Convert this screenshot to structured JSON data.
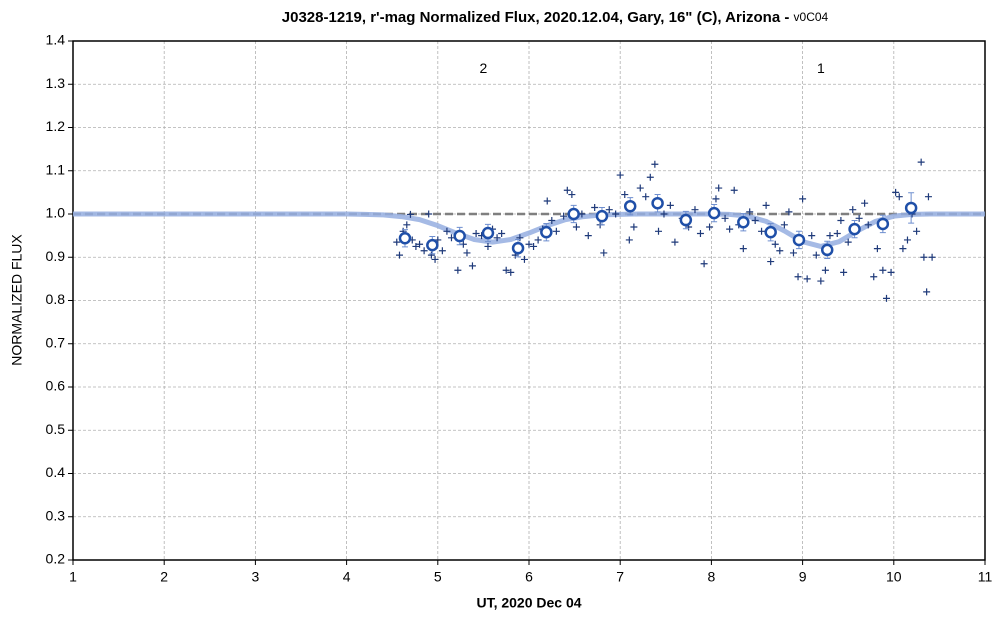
{
  "chart_data": {
    "type": "scatter",
    "title": "J0328-1219, r'-mag Normalized Flux, 2020.12.04, Gary, 16\" (C), Arizona - ",
    "title_suffix": "v0C04",
    "xlabel": "UT, 2020 Dec 04",
    "ylabel": "NORMALIZED FLUX",
    "xlim": [
      1,
      11
    ],
    "ylim": [
      0.2,
      1.4
    ],
    "xticks": [
      1,
      2,
      3,
      4,
      5,
      6,
      7,
      8,
      9,
      10,
      11
    ],
    "yticks": [
      0.2,
      0.3,
      0.4,
      0.5,
      0.6,
      0.7,
      0.8,
      0.9,
      {
        "value": 1,
        "label": "1.0"
      },
      1.1,
      1.2,
      1.3,
      1.4
    ],
    "grid": true,
    "annotations": [
      {
        "text": "2",
        "x": 5.5,
        "y": 1.335
      },
      {
        "text": "1",
        "x": 9.2,
        "y": 1.335
      }
    ],
    "series": [
      {
        "kind": "line",
        "line": "dashed",
        "color": "#7f7f7f",
        "x": [
          1,
          11
        ],
        "values": [
          1,
          1
        ]
      },
      {
        "kind": "line",
        "line": "solid",
        "color": "#95aee0",
        "x": [
          1,
          4.0,
          4.2,
          4.4,
          4.6,
          4.8,
          5.0,
          5.2,
          5.4,
          5.6,
          5.8,
          6.0,
          6.2,
          6.4,
          6.6,
          6.8,
          7.0,
          7.2,
          8.0,
          8.2,
          8.4,
          8.6,
          8.8,
          9.0,
          9.2,
          9.4,
          9.6,
          9.8,
          10.0,
          10.2,
          10.4,
          11
        ],
        "values": [
          1,
          1,
          0.999,
          0.998,
          0.994,
          0.987,
          0.973,
          0.956,
          0.941,
          0.935,
          0.941,
          0.956,
          0.973,
          0.987,
          0.994,
          0.998,
          0.999,
          1,
          1,
          0.999,
          0.995,
          0.983,
          0.961,
          0.936,
          0.925,
          0.936,
          0.961,
          0.983,
          0.995,
          0.999,
          1,
          1
        ]
      },
      {
        "kind": "points",
        "marker": "plus",
        "color": "#1f3a7a",
        "x": [
          4.55,
          4.58,
          4.62,
          4.66,
          4.7,
          4.72,
          4.76,
          4.8,
          4.85,
          4.9,
          4.93,
          4.97,
          5.0,
          5.05,
          5.1,
          5.15,
          5.22,
          5.28,
          5.32,
          5.38,
          5.42,
          5.48,
          5.55,
          5.6,
          5.65,
          5.7,
          5.75,
          5.8,
          5.85,
          5.9,
          5.95,
          6.0,
          6.05,
          6.1,
          6.15,
          6.2,
          6.25,
          6.3,
          6.38,
          6.42,
          6.47,
          6.52,
          6.58,
          6.65,
          6.72,
          6.78,
          6.82,
          6.88,
          6.95,
          7.0,
          7.05,
          7.1,
          7.15,
          7.22,
          7.28,
          7.33,
          7.38,
          7.42,
          7.48,
          7.55,
          7.6,
          7.68,
          7.75,
          7.82,
          7.88,
          7.92,
          7.98,
          8.05,
          8.08,
          8.15,
          8.2,
          8.25,
          8.3,
          8.35,
          8.42,
          8.48,
          8.55,
          8.6,
          8.65,
          8.7,
          8.75,
          8.8,
          8.85,
          8.9,
          8.95,
          9.0,
          9.05,
          9.1,
          9.15,
          9.2,
          9.25,
          9.3,
          9.38,
          9.42,
          9.45,
          9.5,
          9.55,
          9.62,
          9.68,
          9.72,
          9.78,
          9.82,
          9.88,
          9.92,
          9.97,
          10.02,
          10.06,
          10.1,
          10.15,
          10.2,
          10.25,
          10.3,
          10.33,
          10.36,
          10.38,
          10.42
        ],
        "values": [
          0.935,
          0.905,
          0.96,
          0.975,
          0.999,
          0.94,
          0.925,
          0.93,
          0.915,
          1.0,
          0.905,
          0.895,
          0.94,
          0.915,
          0.96,
          0.945,
          0.87,
          0.93,
          0.91,
          0.88,
          0.955,
          0.95,
          0.925,
          0.965,
          0.945,
          0.955,
          0.87,
          0.865,
          0.905,
          0.945,
          0.895,
          0.93,
          0.925,
          0.94,
          0.965,
          1.03,
          0.985,
          0.96,
          0.995,
          1.055,
          1.045,
          0.97,
          1.0,
          0.95,
          1.015,
          0.975,
          0.91,
          1.01,
          1.0,
          1.09,
          1.045,
          0.94,
          0.97,
          1.06,
          1.04,
          1.085,
          1.115,
          0.96,
          1.0,
          1.02,
          0.935,
          0.99,
          0.97,
          1.01,
          0.955,
          0.885,
          0.97,
          1.035,
          1.06,
          0.99,
          0.965,
          1.055,
          0.975,
          0.92,
          1.005,
          0.985,
          0.96,
          1.02,
          0.89,
          0.93,
          0.915,
          0.975,
          1.005,
          0.91,
          0.855,
          1.035,
          0.85,
          0.95,
          0.905,
          0.845,
          0.87,
          0.95,
          0.955,
          0.985,
          0.865,
          0.935,
          1.01,
          0.99,
          1.025,
          0.975,
          0.855,
          0.92,
          0.87,
          0.805,
          0.865,
          1.05,
          1.04,
          0.92,
          0.94,
          1.0,
          0.96,
          1.12,
          0.9,
          0.82,
          1.04,
          0.9
        ]
      },
      {
        "kind": "points",
        "marker": "circle",
        "color": "#1f4fa8",
        "x": [
          4.64,
          4.94,
          5.24,
          5.55,
          5.88,
          6.19,
          6.49,
          6.8,
          7.11,
          7.41,
          7.72,
          8.03,
          8.35,
          8.65,
          8.96,
          9.27,
          9.57,
          9.88,
          10.19
        ],
        "values": [
          0.944,
          0.928,
          0.949,
          0.956,
          0.921,
          0.958,
          1.0,
          0.995,
          1.018,
          1.025,
          0.986,
          1.002,
          0.981,
          0.958,
          0.94,
          0.917,
          0.965,
          0.977,
          1.014
        ],
        "errors": [
          0.02,
          0.02,
          0.02,
          0.02,
          0.02,
          0.02,
          0.02,
          0.02,
          0.02,
          0.02,
          0.02,
          0.02,
          0.02,
          0.02,
          0.02,
          0.02,
          0.02,
          0.02,
          0.035
        ]
      }
    ]
  }
}
